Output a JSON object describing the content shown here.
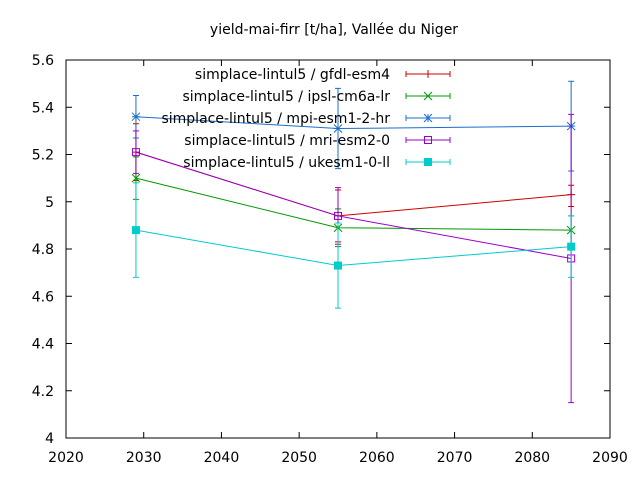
{
  "chart_data": {
    "type": "line",
    "title": "yield-mai-firr [t/ha], Vallée du Niger",
    "xlabel": "",
    "ylabel": "",
    "xlim": [
      2020,
      2090
    ],
    "ylim": [
      4,
      5.6
    ],
    "xticks": [
      2020,
      2030,
      2040,
      2050,
      2060,
      2070,
      2080,
      2090
    ],
    "yticks": [
      4,
      4.2,
      4.4,
      4.6,
      4.8,
      5,
      5.2,
      5.4,
      5.6
    ],
    "ytick_labels": [
      "4",
      "4.2",
      "4.4",
      "4.6",
      "4.8",
      "5",
      "5.2",
      "5.4",
      "5.6"
    ],
    "grid": false,
    "legend_position": "top-right",
    "series": [
      {
        "name": "simplace-lintul5 / gfdl-esm4",
        "color": "#cc0000",
        "marker": "plus",
        "x": [
          2029,
          2055,
          2085
        ],
        "y": [
          5.21,
          4.94,
          5.03
        ],
        "err_low": [
          5.09,
          4.83,
          4.98
        ],
        "err_high": [
          5.33,
          5.05,
          5.07
        ]
      },
      {
        "name": "simplace-lintul5 / ipsl-cm6a-lr",
        "color": "#009900",
        "marker": "cross",
        "x": [
          2029,
          2055,
          2085
        ],
        "y": [
          5.1,
          4.89,
          4.88
        ],
        "err_low": [
          5.01,
          4.81,
          4.82
        ],
        "err_high": [
          5.19,
          4.97,
          4.94
        ]
      },
      {
        "name": "simplace-lintul5 / mpi-esm1-2-hr",
        "color": "#1a6fcc",
        "marker": "star",
        "x": [
          2029,
          2055,
          2085
        ],
        "y": [
          5.36,
          5.31,
          5.32
        ],
        "err_low": [
          5.27,
          5.14,
          5.13
        ],
        "err_high": [
          5.45,
          5.48,
          5.51
        ]
      },
      {
        "name": "simplace-lintul5 / mri-esm2-0",
        "color": "#9900cc",
        "marker": "square-open",
        "x": [
          2029,
          2055,
          2085
        ],
        "y": [
          5.21,
          4.94,
          4.76
        ],
        "err_low": [
          5.12,
          4.82,
          4.15
        ],
        "err_high": [
          5.3,
          5.06,
          5.37
        ]
      },
      {
        "name": "simplace-lintul5 / ukesm1-0-ll",
        "color": "#00cccc",
        "marker": "square-filled",
        "x": [
          2029,
          2055,
          2085
        ],
        "y": [
          4.88,
          4.73,
          4.81
        ],
        "err_low": [
          4.68,
          4.55,
          4.68
        ],
        "err_high": [
          5.08,
          4.91,
          4.94
        ]
      }
    ]
  }
}
